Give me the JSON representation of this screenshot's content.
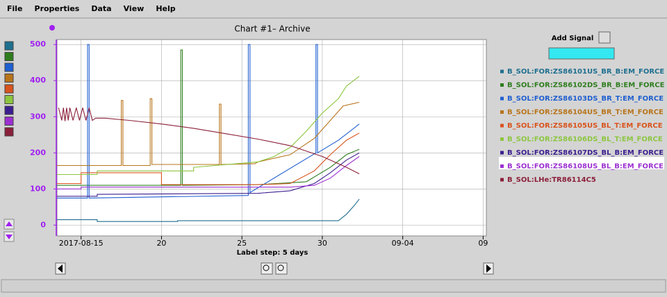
{
  "menu": [
    "File",
    "Properties",
    "Data",
    "View",
    "Help"
  ],
  "add_signal": "Add Signal",
  "chart_data": {
    "type": "line",
    "title": "Chart #1– Archive",
    "xlabel": "Label step: 5 days",
    "xlim": [
      13.5,
      40.2
    ],
    "xticks": [
      {
        "value": 15,
        "label": "2017-08-15"
      },
      20,
      25,
      30,
      {
        "value": 35,
        "label": "09-04"
      },
      {
        "value": 40,
        "label": "09"
      }
    ],
    "ylim": [
      -30,
      508
    ],
    "yticks": [
      0,
      100,
      200,
      300,
      400,
      500
    ],
    "grid": true,
    "series": [
      {
        "name": "B_SOL:FOR:ZS86101US_BR_B:EM_FORCE",
        "color": "#1f6f8f",
        "x": [
          13.5,
          16,
          16,
          21,
          21,
          27,
          31,
          31.5,
          32,
          32.3
        ],
        "values": [
          15,
          15,
          10,
          10,
          12,
          12,
          12,
          30,
          55,
          72
        ]
      },
      {
        "name": "B_SOL:FOR:ZS86102DS_BR_B:EM_FORCE",
        "color": "#2e7d1e",
        "x": [
          13.5,
          21.2,
          21.2,
          21.3,
          21.3,
          26,
          29,
          30.5,
          31.5,
          32.3
        ],
        "values": [
          110,
          110,
          485,
          485,
          110,
          112,
          120,
          160,
          195,
          210
        ]
      },
      {
        "name": "B_SOL:FOR:ZS86103DS_BR_T:EM_FORCE",
        "color": "#1f5fd0",
        "x": [
          13.5,
          15.4,
          15.4,
          15.5,
          15.5,
          25.4,
          25.4,
          25.5,
          25.5,
          29.6,
          29.6,
          29.7,
          29.7,
          31,
          32.3
        ],
        "values": [
          75,
          75,
          500,
          500,
          75,
          82,
          500,
          500,
          90,
          200,
          500,
          500,
          200,
          235,
          280
        ]
      },
      {
        "name": "B_SOL:FOR:ZS86104US_BR_T:EM_FORCE",
        "color": "#b8741a",
        "x": [
          13.5,
          17.5,
          17.5,
          17.6,
          17.6,
          19.3,
          19.3,
          19.4,
          19.4,
          23.6,
          23.6,
          23.7,
          23.7,
          25.8,
          26,
          28,
          29.5,
          30.5,
          31.3,
          32.3
        ],
        "values": [
          165,
          165,
          345,
          345,
          165,
          165,
          350,
          350,
          168,
          168,
          335,
          335,
          168,
          170,
          175,
          195,
          240,
          290,
          330,
          340
        ]
      },
      {
        "name": "B_SOL:FOR:ZS86105US_BL_T:EM_FORCE",
        "color": "#d9541e",
        "x": [
          13.5,
          15,
          15,
          20,
          20,
          26,
          28,
          29.5,
          30.5,
          31.5,
          32.3
        ],
        "values": [
          115,
          115,
          145,
          145,
          112,
          112,
          115,
          150,
          195,
          235,
          255
        ]
      },
      {
        "name": "B_SOL:FOR:ZS86106DS_BL_T:EM_FORCE",
        "color": "#8cc63f",
        "x": [
          13.5,
          16,
          16,
          22,
          22,
          26,
          27,
          28,
          29,
          30,
          31,
          31.5,
          32.3
        ],
        "values": [
          140,
          140,
          150,
          150,
          160,
          175,
          190,
          215,
          260,
          310,
          350,
          385,
          412
        ]
      },
      {
        "name": "B_SOL:FOR:ZS86107DS_BL_B:EM_FORCE",
        "color": "#3b1e8f",
        "x": [
          13.5,
          16,
          16,
          26,
          28,
          29.5,
          30.5,
          31.5,
          32.3
        ],
        "values": [
          80,
          80,
          85,
          88,
          95,
          115,
          145,
          180,
          200
        ]
      },
      {
        "name": "B_SOL:FOR:ZS86108US_BL_B:EM_FORCE",
        "color": "#9b30d0",
        "x": [
          13.5,
          15,
          15,
          28,
          29.5,
          30.5,
          31.5,
          32.3
        ],
        "values": [
          100,
          100,
          105,
          105,
          110,
          130,
          165,
          190
        ]
      },
      {
        "name": "B_SOL:LHe:TR86114C5",
        "color": "#8b1f3a",
        "x": [
          13.6,
          13.8,
          13.9,
          14.0,
          14.1,
          14.2,
          14.3,
          14.5,
          14.7,
          14.9,
          15.1,
          15.3,
          15.5,
          15.7,
          15.9,
          16.5,
          18,
          20,
          22,
          24,
          26,
          28,
          30,
          31.5,
          32.3
        ],
        "values": [
          325,
          290,
          325,
          288,
          325,
          290,
          325,
          290,
          325,
          290,
          325,
          290,
          325,
          290,
          296,
          296,
          290,
          280,
          268,
          253,
          238,
          220,
          190,
          160,
          142
        ]
      }
    ]
  }
}
